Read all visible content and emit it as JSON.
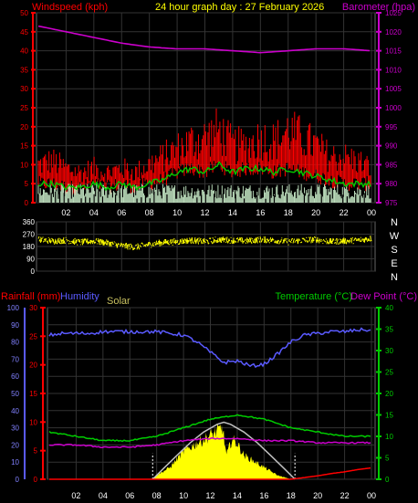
{
  "title": "24 hour graph day : 27 February 2026",
  "colors": {
    "wind": "#ff0000",
    "gust": "#ff0000",
    "avg_wind": "#00cc00",
    "wind_low": "#d8ffd8",
    "baro": "#cc00cc",
    "dir": "#ffff00",
    "rain": "#ff0000",
    "humidity": "#5a5aff",
    "solar": "#ffff00",
    "solar_theory": "#c0c0c0",
    "temp": "#00cc00",
    "dew": "#cc00cc",
    "grid": "#333333",
    "axis_text": "#ffffff"
  },
  "chart_data": [
    {
      "type": "line",
      "id": "wind_baro",
      "xlabel": "",
      "left_label": "Windspeed (kph)",
      "right_label": "Barometer (hpa)",
      "x_ticks": [
        "02",
        "04",
        "06",
        "08",
        "10",
        "12",
        "14",
        "16",
        "18",
        "20",
        "22",
        "00"
      ],
      "y_left_ticks": [
        "0",
        "5",
        "10",
        "15",
        "20",
        "25",
        "30",
        "35",
        "40",
        "45",
        "50"
      ],
      "y_left_range": [
        0,
        50
      ],
      "y_right_ticks": [
        "975",
        "980",
        "985",
        "990",
        "995",
        "1000",
        "1005",
        "1010",
        "1015",
        "1020",
        "1025"
      ],
      "y_right_range": [
        975,
        1025
      ],
      "grid": true,
      "series": [
        {
          "name": "Windspeed (kph)",
          "role": "gust_band",
          "hours": [
            0,
            1,
            2,
            3,
            4,
            5,
            6,
            7,
            8,
            9,
            10,
            11,
            12,
            13,
            14,
            15,
            16,
            17,
            18,
            19,
            20,
            21,
            22,
            23,
            24
          ],
          "values": [
            10,
            11,
            9,
            8,
            9,
            8,
            9,
            8,
            10,
            12,
            14,
            16,
            17,
            19,
            15,
            15,
            17,
            16,
            19,
            17,
            15,
            12,
            12,
            11,
            9
          ]
        },
        {
          "name": "avg",
          "role": "average",
          "hours": [
            0,
            1,
            2,
            3,
            4,
            5,
            6,
            7,
            8,
            9,
            10,
            11,
            12,
            13,
            14,
            15,
            16,
            17,
            18,
            19,
            20,
            21,
            22,
            23,
            24
          ],
          "values": [
            5,
            5,
            4,
            4,
            5,
            4,
            5,
            4,
            5,
            6,
            8,
            9,
            8,
            10,
            8,
            9,
            9,
            8,
            9,
            8,
            7,
            6,
            5,
            5,
            5
          ]
        },
        {
          "name": "Barometer (hpa)",
          "role": "barometer",
          "hours": [
            0,
            2,
            4,
            6,
            8,
            10,
            12,
            14,
            16,
            18,
            20,
            22,
            24
          ],
          "values": [
            1021.5,
            1020,
            1018.5,
            1017,
            1016,
            1015.5,
            1015.5,
            1015,
            1014.5,
            1015,
            1015.5,
            1015.5,
            1015
          ]
        }
      ]
    },
    {
      "type": "scatter",
      "id": "wind_dir",
      "y_left_ticks": [
        "360",
        "270",
        "180",
        "90",
        "0"
      ],
      "y_range": [
        0,
        360
      ],
      "y_right_labels": [
        "N",
        "W",
        "S",
        "E",
        "N"
      ],
      "hours": [
        0,
        1,
        2,
        3,
        4,
        5,
        6,
        7,
        8,
        9,
        10,
        11,
        12,
        13,
        14,
        15,
        16,
        17,
        18,
        19,
        20,
        21,
        22,
        23,
        24
      ],
      "values": [
        230,
        220,
        225,
        210,
        220,
        205,
        185,
        175,
        195,
        210,
        215,
        225,
        215,
        230,
        225,
        220,
        230,
        225,
        215,
        225,
        230,
        215,
        220,
        225,
        240
      ]
    },
    {
      "type": "line",
      "id": "rain_hum_solar_temp",
      "labels": {
        "rain": "Rainfall (mm)",
        "humidity": "Humidity",
        "solar": "Solar",
        "temp": "Temperature (°C)",
        "dew": "Dew Point (°C)"
      },
      "x_ticks": [
        "02",
        "04",
        "06",
        "08",
        "10",
        "12",
        "14",
        "16",
        "18",
        "20",
        "22",
        "00"
      ],
      "humidity_ticks": [
        "0",
        "10",
        "20",
        "30",
        "40",
        "50",
        "60",
        "70",
        "80",
        "90",
        "100"
      ],
      "rain_ticks": [
        "0",
        "5",
        "10",
        "15",
        "20",
        "25",
        "30"
      ],
      "temp_ticks": [
        "0",
        "5",
        "10",
        "15",
        "20",
        "25",
        "30",
        "35",
        "40"
      ],
      "humidity_range": [
        0,
        100
      ],
      "rain_range": [
        0,
        30
      ],
      "temp_range": [
        0,
        40
      ],
      "series": [
        {
          "name": "Humidity",
          "hours": [
            0,
            1,
            2,
            3,
            4,
            5,
            6,
            7,
            8,
            9,
            10,
            11,
            12,
            13,
            14,
            15,
            16,
            17,
            18,
            19,
            20,
            21,
            22,
            23,
            24
          ],
          "values": [
            84,
            85,
            85,
            85,
            86,
            86,
            86,
            86,
            86,
            85,
            84,
            80,
            74,
            68,
            69,
            66,
            67,
            73,
            80,
            84,
            85,
            86,
            86,
            87,
            87
          ]
        },
        {
          "name": "Temperature (°C)",
          "hours": [
            0,
            2,
            4,
            6,
            8,
            10,
            12,
            14,
            16,
            18,
            20,
            22,
            24
          ],
          "values": [
            11,
            10,
            9,
            9,
            10,
            12,
            14,
            15,
            14,
            12,
            11,
            10,
            10
          ]
        },
        {
          "name": "Dew Point (°C)",
          "hours": [
            0,
            2,
            4,
            6,
            8,
            10,
            12,
            14,
            16,
            18,
            20,
            22,
            24
          ],
          "values": [
            8,
            8,
            7.5,
            7.5,
            8,
            9,
            9.5,
            9.5,
            9,
            9,
            8.5,
            8.5,
            8.5
          ]
        },
        {
          "name": "Rainfall (mm)",
          "hours": [
            0,
            18,
            19,
            20,
            21,
            22,
            23,
            24
          ],
          "values": [
            0,
            0,
            0.3,
            0.6,
            1,
            1.3,
            1.7,
            2
          ]
        },
        {
          "name": "Solar",
          "role": "solar_area",
          "hours": [
            7.7,
            8,
            8.5,
            9,
            9.5,
            10,
            10.5,
            11,
            11.5,
            12,
            12.5,
            12.9,
            13.2,
            13.6,
            14,
            14.5,
            15,
            15.5,
            16,
            16.5,
            17,
            17.5,
            18
          ],
          "values": [
            0,
            1,
            2,
            3,
            5,
            7,
            8,
            9,
            10,
            11,
            12,
            13,
            6,
            10,
            9,
            6,
            5,
            4,
            3,
            2,
            1,
            0.5,
            0
          ]
        },
        {
          "name": "Solar theoretical",
          "role": "solar_curve",
          "hours": [
            7.7,
            8.5,
            9.5,
            10.5,
            11.5,
            12.5,
            13,
            13.5,
            14.5,
            15.5,
            16.5,
            17.5,
            18.3
          ],
          "values": [
            0,
            2.5,
            5.5,
            8.5,
            11,
            12.8,
            13.3,
            12.8,
            11,
            8.5,
            5.5,
            2.5,
            0
          ]
        }
      ]
    }
  ]
}
